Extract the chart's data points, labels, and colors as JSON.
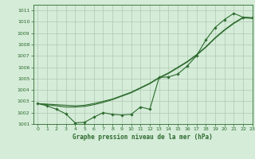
{
  "title": "Graphe pression niveau de la mer (hPa)",
  "bg_color": "#d4ecd8",
  "grid_color": "#b0c8b4",
  "line_color": "#2d6a2d",
  "xlim": [
    -0.5,
    23
  ],
  "ylim": [
    1001,
    1011.5
  ],
  "xticks": [
    0,
    1,
    2,
    3,
    4,
    5,
    6,
    7,
    8,
    9,
    10,
    11,
    12,
    13,
    14,
    15,
    16,
    17,
    18,
    19,
    20,
    21,
    22,
    23
  ],
  "yticks": [
    1001,
    1002,
    1003,
    1004,
    1005,
    1006,
    1007,
    1008,
    1009,
    1010,
    1011
  ],
  "measured": [
    1002.8,
    1002.6,
    1002.3,
    1001.9,
    1001.1,
    1001.15,
    1001.6,
    1002.0,
    1001.85,
    1001.8,
    1001.85,
    1002.5,
    1002.3,
    1005.1,
    1005.15,
    1005.4,
    1006.1,
    1007.0,
    1008.4,
    1009.5,
    1010.2,
    1010.75,
    1010.4,
    1010.35
  ],
  "trend1": [
    1002.8,
    1002.75,
    1002.7,
    1002.65,
    1002.6,
    1002.65,
    1002.8,
    1003.0,
    1003.2,
    1003.5,
    1003.8,
    1004.2,
    1004.6,
    1005.1,
    1005.5,
    1006.0,
    1006.5,
    1007.1,
    1007.8,
    1008.6,
    1009.3,
    1009.9,
    1010.4,
    1010.35
  ],
  "trend2": [
    1002.8,
    1002.7,
    1002.6,
    1002.5,
    1002.5,
    1002.55,
    1002.7,
    1002.9,
    1003.15,
    1003.45,
    1003.75,
    1004.15,
    1004.55,
    1005.05,
    1005.45,
    1005.95,
    1006.45,
    1007.05,
    1007.75,
    1008.55,
    1009.25,
    1009.85,
    1010.35,
    1010.3
  ]
}
